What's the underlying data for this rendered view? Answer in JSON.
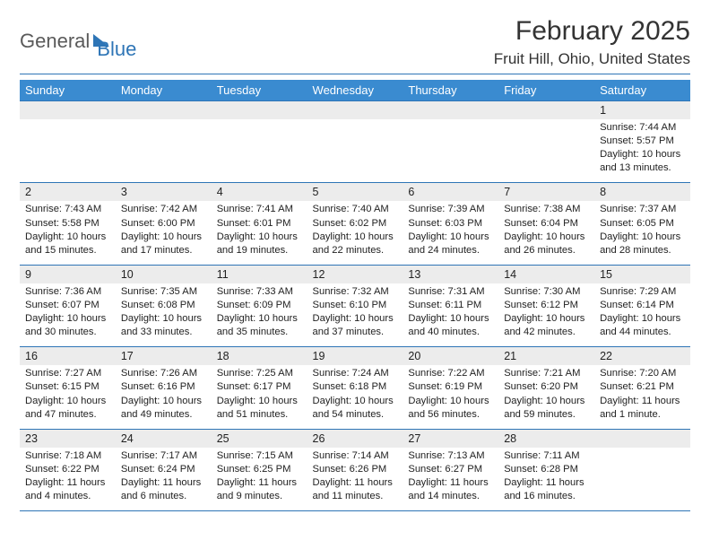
{
  "logo": {
    "part1": "General",
    "part2": "Blue"
  },
  "title": "February 2025",
  "location": "Fruit Hill, Ohio, United States",
  "colors": {
    "header_bg": "#3a8bd0",
    "rule": "#2e75b6",
    "daynum_bg": "#ececec",
    "text": "#222222"
  },
  "weekdays": [
    "Sunday",
    "Monday",
    "Tuesday",
    "Wednesday",
    "Thursday",
    "Friday",
    "Saturday"
  ],
  "weeks": [
    [
      {
        "n": "",
        "d": ""
      },
      {
        "n": "",
        "d": ""
      },
      {
        "n": "",
        "d": ""
      },
      {
        "n": "",
        "d": ""
      },
      {
        "n": "",
        "d": ""
      },
      {
        "n": "",
        "d": ""
      },
      {
        "n": "1",
        "d": "Sunrise: 7:44 AM\nSunset: 5:57 PM\nDaylight: 10 hours and 13 minutes."
      }
    ],
    [
      {
        "n": "2",
        "d": "Sunrise: 7:43 AM\nSunset: 5:58 PM\nDaylight: 10 hours and 15 minutes."
      },
      {
        "n": "3",
        "d": "Sunrise: 7:42 AM\nSunset: 6:00 PM\nDaylight: 10 hours and 17 minutes."
      },
      {
        "n": "4",
        "d": "Sunrise: 7:41 AM\nSunset: 6:01 PM\nDaylight: 10 hours and 19 minutes."
      },
      {
        "n": "5",
        "d": "Sunrise: 7:40 AM\nSunset: 6:02 PM\nDaylight: 10 hours and 22 minutes."
      },
      {
        "n": "6",
        "d": "Sunrise: 7:39 AM\nSunset: 6:03 PM\nDaylight: 10 hours and 24 minutes."
      },
      {
        "n": "7",
        "d": "Sunrise: 7:38 AM\nSunset: 6:04 PM\nDaylight: 10 hours and 26 minutes."
      },
      {
        "n": "8",
        "d": "Sunrise: 7:37 AM\nSunset: 6:05 PM\nDaylight: 10 hours and 28 minutes."
      }
    ],
    [
      {
        "n": "9",
        "d": "Sunrise: 7:36 AM\nSunset: 6:07 PM\nDaylight: 10 hours and 30 minutes."
      },
      {
        "n": "10",
        "d": "Sunrise: 7:35 AM\nSunset: 6:08 PM\nDaylight: 10 hours and 33 minutes."
      },
      {
        "n": "11",
        "d": "Sunrise: 7:33 AM\nSunset: 6:09 PM\nDaylight: 10 hours and 35 minutes."
      },
      {
        "n": "12",
        "d": "Sunrise: 7:32 AM\nSunset: 6:10 PM\nDaylight: 10 hours and 37 minutes."
      },
      {
        "n": "13",
        "d": "Sunrise: 7:31 AM\nSunset: 6:11 PM\nDaylight: 10 hours and 40 minutes."
      },
      {
        "n": "14",
        "d": "Sunrise: 7:30 AM\nSunset: 6:12 PM\nDaylight: 10 hours and 42 minutes."
      },
      {
        "n": "15",
        "d": "Sunrise: 7:29 AM\nSunset: 6:14 PM\nDaylight: 10 hours and 44 minutes."
      }
    ],
    [
      {
        "n": "16",
        "d": "Sunrise: 7:27 AM\nSunset: 6:15 PM\nDaylight: 10 hours and 47 minutes."
      },
      {
        "n": "17",
        "d": "Sunrise: 7:26 AM\nSunset: 6:16 PM\nDaylight: 10 hours and 49 minutes."
      },
      {
        "n": "18",
        "d": "Sunrise: 7:25 AM\nSunset: 6:17 PM\nDaylight: 10 hours and 51 minutes."
      },
      {
        "n": "19",
        "d": "Sunrise: 7:24 AM\nSunset: 6:18 PM\nDaylight: 10 hours and 54 minutes."
      },
      {
        "n": "20",
        "d": "Sunrise: 7:22 AM\nSunset: 6:19 PM\nDaylight: 10 hours and 56 minutes."
      },
      {
        "n": "21",
        "d": "Sunrise: 7:21 AM\nSunset: 6:20 PM\nDaylight: 10 hours and 59 minutes."
      },
      {
        "n": "22",
        "d": "Sunrise: 7:20 AM\nSunset: 6:21 PM\nDaylight: 11 hours and 1 minute."
      }
    ],
    [
      {
        "n": "23",
        "d": "Sunrise: 7:18 AM\nSunset: 6:22 PM\nDaylight: 11 hours and 4 minutes."
      },
      {
        "n": "24",
        "d": "Sunrise: 7:17 AM\nSunset: 6:24 PM\nDaylight: 11 hours and 6 minutes."
      },
      {
        "n": "25",
        "d": "Sunrise: 7:15 AM\nSunset: 6:25 PM\nDaylight: 11 hours and 9 minutes."
      },
      {
        "n": "26",
        "d": "Sunrise: 7:14 AM\nSunset: 6:26 PM\nDaylight: 11 hours and 11 minutes."
      },
      {
        "n": "27",
        "d": "Sunrise: 7:13 AM\nSunset: 6:27 PM\nDaylight: 11 hours and 14 minutes."
      },
      {
        "n": "28",
        "d": "Sunrise: 7:11 AM\nSunset: 6:28 PM\nDaylight: 11 hours and 16 minutes."
      },
      {
        "n": "",
        "d": ""
      }
    ]
  ]
}
